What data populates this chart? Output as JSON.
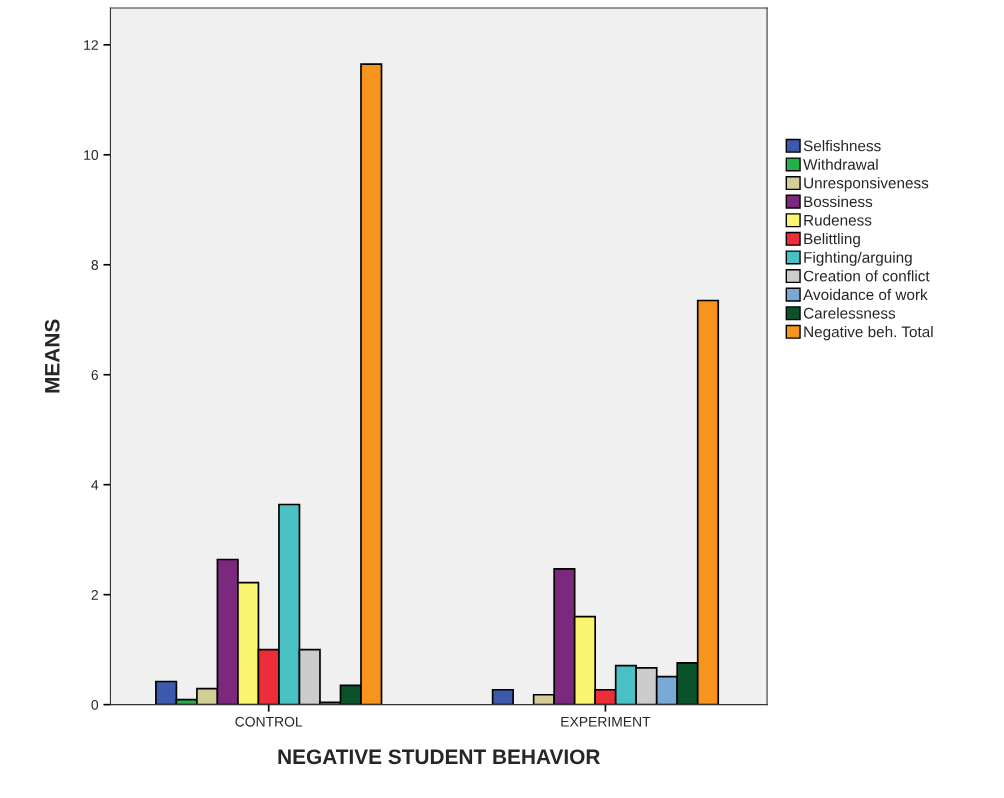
{
  "chart_data": {
    "type": "bar",
    "xlabel": "NEGATIVE STUDENT BEHAVIOR",
    "ylabel": "MEANS",
    "categories": [
      "CONTROL",
      "EXPERIMENT"
    ],
    "ylim": [
      0,
      12.67
    ],
    "yticks": [
      0,
      2,
      4,
      6,
      8,
      10,
      12
    ],
    "grid": false,
    "legend": "right",
    "series": [
      {
        "name": "Selfishness",
        "color": "#3e58ac",
        "values": [
          0.42,
          0.27
        ]
      },
      {
        "name": "Withdrawal",
        "color": "#22b04b",
        "values": [
          0.09,
          null
        ]
      },
      {
        "name": "Unresponsiveness",
        "color": "#d3ce97",
        "values": [
          0.29,
          0.18
        ]
      },
      {
        "name": "Bossiness",
        "color": "#7b287d",
        "values": [
          2.64,
          2.47
        ]
      },
      {
        "name": "Rudeness",
        "color": "#fbf46f",
        "values": [
          2.22,
          1.6
        ]
      },
      {
        "name": "Belittling",
        "color": "#ed2d38",
        "values": [
          1.0,
          0.27
        ]
      },
      {
        "name": "Fighting/arguing",
        "color": "#48c0c4",
        "values": [
          3.64,
          0.71
        ]
      },
      {
        "name": "Creation of conflict",
        "color": "#cccccc",
        "values": [
          1.0,
          0.67
        ]
      },
      {
        "name": "Avoidance of work",
        "color": "#79a9d6",
        "values": [
          0.04,
          0.51
        ]
      },
      {
        "name": "Carelessness",
        "color": "#0a522a",
        "values": [
          0.35,
          0.76
        ]
      },
      {
        "name": "Negative beh. Total",
        "color": "#f7941d",
        "values": [
          11.65,
          7.35
        ]
      }
    ]
  }
}
